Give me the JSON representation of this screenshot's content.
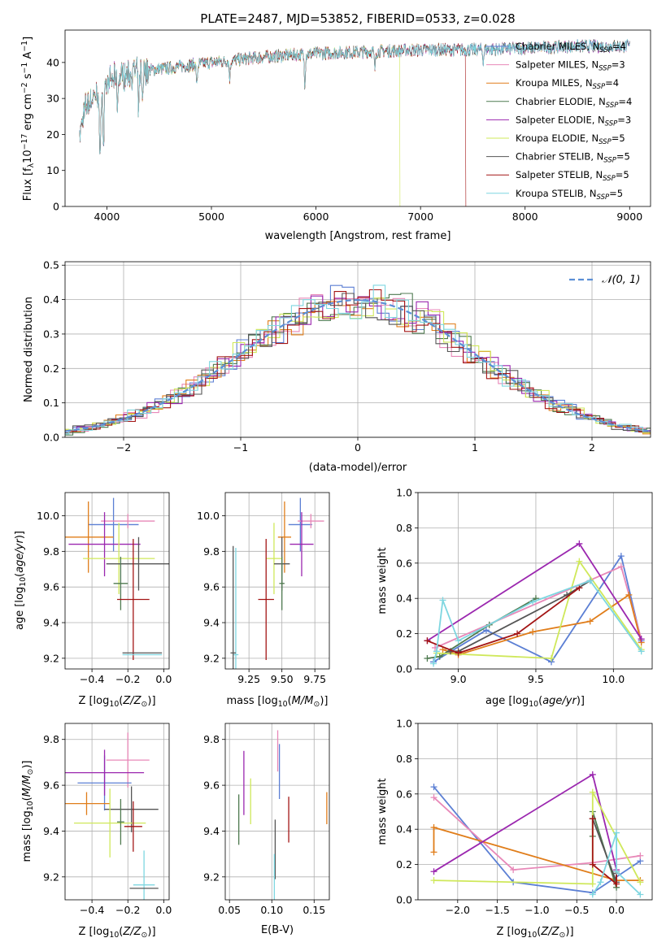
{
  "figure_title": "PLATE=2487, MJD=53852, FIBERID=0533, z=0.028",
  "colors": {
    "Chabrier MILES": "#5b7fd4",
    "Salpeter MILES": "#e888b8",
    "Kroupa MILES": "#e07d1a",
    "Chabrier ELODIE": "#4f7a50",
    "Salpeter ELODIE": "#9b27af",
    "Kroupa ELODIE": "#cfe85a",
    "Chabrier STELIB": "#555555",
    "Salpeter STELIB": "#a31515",
    "Kroupa STELIB": "#7ed6e0",
    "normal": "#5b8fd6"
  },
  "chart_data": [
    {
      "id": "spectrum",
      "type": "line",
      "xlabel": "wavelength [Angstrom, rest frame]",
      "ylabel": "Flux [fλ10⁻¹⁷ erg cm⁻² s⁻¹ A⁻¹]",
      "xlim": [
        3600,
        9200
      ],
      "ylim": [
        0,
        49
      ],
      "xticks": [
        4000,
        5000,
        6000,
        7000,
        8000,
        9000
      ],
      "yticks": [
        0,
        10,
        20,
        30,
        40
      ],
      "grid": false,
      "legend_position": "upper-right",
      "legend": [
        {
          "series": "Chabrier MILES",
          "text": "Chabrier MILES, N_SSP=4"
        },
        {
          "series": "Salpeter MILES",
          "text": "Salpeter MILES, N_SSP=3"
        },
        {
          "series": "Kroupa MILES",
          "text": "Kroupa MILES, N_SSP=4"
        },
        {
          "series": "Chabrier ELODIE",
          "text": "Chabrier ELODIE, N_SSP=4"
        },
        {
          "series": "Salpeter ELODIE",
          "text": "Salpeter ELODIE, N_SSP=3"
        },
        {
          "series": "Kroupa ELODIE",
          "text": "Kroupa ELODIE, N_SSP=5"
        },
        {
          "series": "Chabrier STELIB",
          "text": "Chabrier STELIB, N_SSP=5"
        },
        {
          "series": "Salpeter STELIB",
          "text": "Salpeter STELIB, N_SSP=5"
        },
        {
          "series": "Kroupa STELIB",
          "text": "Kroupa STELIB, N_SSP=5"
        }
      ],
      "continuum": [
        [
          3740,
          20
        ],
        [
          3800,
          28
        ],
        [
          3900,
          31
        ],
        [
          4000,
          34
        ],
        [
          4100,
          36
        ],
        [
          4300,
          37.5
        ],
        [
          4600,
          38.5
        ],
        [
          5000,
          40
        ],
        [
          5500,
          41.5
        ],
        [
          6000,
          42.5
        ],
        [
          6500,
          43
        ],
        [
          7000,
          43.5
        ],
        [
          7500,
          43.5
        ],
        [
          8000,
          44
        ],
        [
          8500,
          44.5
        ],
        [
          9000,
          44.5
        ]
      ],
      "spectrum_range": [
        3740,
        9000
      ],
      "absorption_features": [
        [
          3934,
          22
        ],
        [
          3968,
          18
        ],
        [
          4102,
          8
        ],
        [
          4304,
          12
        ],
        [
          4340,
          8
        ],
        [
          4861,
          6
        ],
        [
          5175,
          5
        ],
        [
          5893,
          8
        ],
        [
          6563,
          5
        ],
        [
          7600,
          3
        ]
      ],
      "series_cutoffs": {
        "Kroupa ELODIE": 6800,
        "Salpeter STELIB": 7430
      }
    },
    {
      "id": "residuals",
      "type": "histogram",
      "xlabel": "(data-model)/error",
      "ylabel": "Normed distribution",
      "xlim": [
        -2.5,
        2.5
      ],
      "ylim": [
        0,
        0.51
      ],
      "xticks": [
        -2,
        -1,
        0,
        1,
        2
      ],
      "yticks": [
        0.0,
        0.1,
        0.2,
        0.3,
        0.4,
        0.5
      ],
      "grid": true,
      "bin_width": 0.1,
      "overlay": {
        "type": "gaussian",
        "mean": 0,
        "sigma": 1,
        "label": "𝒩(0, 1)",
        "style": "dashed"
      },
      "legend_position": "upper-right"
    },
    {
      "id": "age_vs_Z",
      "type": "errorbar",
      "xlabel": "Z [log10(Z/Z⊙)]",
      "ylabel": "age  [log10(age/yr)]",
      "xlim": [
        -0.55,
        0.03
      ],
      "ylim": [
        9.14,
        10.13
      ],
      "xticks": [
        -0.4,
        -0.2,
        0.0
      ],
      "yticks": [
        9.2,
        9.4,
        9.6,
        9.8,
        10.0
      ],
      "points": [
        {
          "series": "Chabrier MILES",
          "x": -0.28,
          "y": 9.95,
          "xerr": 0.14,
          "yerr": 0.15
        },
        {
          "series": "Salpeter MILES",
          "x": -0.2,
          "y": 9.97,
          "xerr": 0.15,
          "yerr": 0.04
        },
        {
          "series": "Kroupa MILES",
          "x": -0.42,
          "y": 9.88,
          "xerr": 0.14,
          "yerr": 0.2
        },
        {
          "series": "Salpeter ELODIE",
          "x": -0.33,
          "y": 9.84,
          "xerr": 0.2,
          "yerr": 0.18
        },
        {
          "series": "Kroupa ELODIE",
          "x": -0.25,
          "y": 9.76,
          "xerr": 0.2,
          "yerr": 0.2
        },
        {
          "series": "Chabrier STELIB",
          "x": -0.14,
          "y": 9.73,
          "xerr": 0.18,
          "yerr": 0.15
        },
        {
          "series": "Chabrier ELODIE",
          "x": -0.24,
          "y": 9.62,
          "xerr": 0.04,
          "yerr": 0.15
        },
        {
          "series": "Salpeter STELIB",
          "x": -0.17,
          "y": 9.53,
          "xerr": 0.09,
          "yerr": 0.34
        },
        {
          "series": "Kroupa STELIB",
          "x": -0.12,
          "y": 9.22,
          "xerr": 0.11,
          "yerr": 0.0
        },
        {
          "series": "Chabrier STELIB",
          "x": -0.12,
          "y": 9.23,
          "xerr": 0.11,
          "yerr": 0.0
        }
      ]
    },
    {
      "id": "age_vs_mass",
      "type": "errorbar",
      "xlabel": "mass [log10(M/M⊙)]",
      "ylabel": "",
      "xlim": [
        9.07,
        9.86
      ],
      "ylim": [
        9.14,
        10.13
      ],
      "xticks": [
        9.25,
        9.5,
        9.75
      ],
      "yticks": [
        9.2,
        9.4,
        9.6,
        9.8,
        10.0
      ],
      "points": [
        {
          "series": "Chabrier MILES",
          "x": 9.64,
          "y": 9.95,
          "xerr": 0.09,
          "yerr": 0.15
        },
        {
          "series": "Salpeter MILES",
          "x": 9.72,
          "y": 9.97,
          "xerr": 0.1,
          "yerr": 0.04
        },
        {
          "series": "Kroupa MILES",
          "x": 9.52,
          "y": 9.88,
          "xerr": 0.05,
          "yerr": 0.2
        },
        {
          "series": "Salpeter ELODIE",
          "x": 9.65,
          "y": 9.84,
          "xerr": 0.09,
          "yerr": 0.18
        },
        {
          "series": "Kroupa ELODIE",
          "x": 9.44,
          "y": 9.76,
          "xerr": 0.06,
          "yerr": 0.2
        },
        {
          "series": "Chabrier STELIB",
          "x": 9.5,
          "y": 9.73,
          "xerr": 0.06,
          "yerr": 0.15
        },
        {
          "series": "Chabrier ELODIE",
          "x": 9.5,
          "y": 9.62,
          "xerr": 0.02,
          "yerr": 0.15
        },
        {
          "series": "Salpeter STELIB",
          "x": 9.38,
          "y": 9.53,
          "xerr": 0.06,
          "yerr": 0.34
        },
        {
          "series": "Kroupa STELIB",
          "x": 9.15,
          "y": 9.22,
          "xerr": 0.02,
          "yerr": 0.6
        },
        {
          "series": "Chabrier STELIB",
          "x": 9.13,
          "y": 9.23,
          "xerr": 0.02,
          "yerr": 0.6
        }
      ]
    },
    {
      "id": "weight_vs_age",
      "type": "line",
      "xlabel": "age  [log10(age/yr)]",
      "ylabel": "mass weight",
      "xlim": [
        8.74,
        10.25
      ],
      "ylim": [
        0.0,
        1.0
      ],
      "xticks": [
        9.0,
        9.5,
        10.0
      ],
      "yticks": [
        0.0,
        0.2,
        0.4,
        0.6,
        0.8,
        1.0
      ],
      "grid": true,
      "series": [
        {
          "name": "Chabrier MILES",
          "points": [
            [
              8.84,
              0.04
            ],
            [
              9.18,
              0.22
            ],
            [
              9.6,
              0.04
            ],
            [
              10.05,
              0.64
            ],
            [
              10.18,
              0.16
            ]
          ]
        },
        {
          "name": "Salpeter MILES",
          "points": [
            [
              8.85,
              0.12
            ],
            [
              10.05,
              0.58
            ],
            [
              10.18,
              0.17
            ]
          ]
        },
        {
          "name": "Kroupa MILES",
          "points": [
            [
              8.9,
              0.11
            ],
            [
              9.0,
              0.08
            ],
            [
              9.48,
              0.21
            ],
            [
              9.85,
              0.27
            ],
            [
              10.1,
              0.42
            ],
            [
              10.18,
              0.15
            ]
          ]
        },
        {
          "name": "Chabrier ELODIE",
          "points": [
            [
              8.8,
              0.06
            ],
            [
              8.88,
              0.07
            ],
            [
              9.2,
              0.25
            ],
            [
              9.5,
              0.4
            ]
          ]
        },
        {
          "name": "Salpeter ELODIE",
          "points": [
            [
              8.8,
              0.16
            ],
            [
              9.78,
              0.71
            ],
            [
              10.18,
              0.17
            ]
          ]
        },
        {
          "name": "Kroupa ELODIE",
          "points": [
            [
              8.86,
              0.09
            ],
            [
              9.6,
              0.06
            ],
            [
              9.78,
              0.61
            ],
            [
              10.18,
              0.11
            ]
          ]
        },
        {
          "name": "Chabrier STELIB",
          "points": [
            [
              8.95,
              0.1
            ],
            [
              9.0,
              0.1
            ],
            [
              9.7,
              0.42
            ],
            [
              9.85,
              0.5
            ]
          ]
        },
        {
          "name": "Salpeter STELIB",
          "points": [
            [
              8.8,
              0.16
            ],
            [
              9.0,
              0.09
            ],
            [
              9.38,
              0.2
            ],
            [
              9.78,
              0.46
            ]
          ]
        },
        {
          "name": "Kroupa STELIB",
          "points": [
            [
              8.84,
              0.03
            ],
            [
              8.86,
              0.1
            ],
            [
              8.9,
              0.39
            ],
            [
              9.0,
              0.16
            ],
            [
              9.48,
              0.38
            ],
            [
              9.85,
              0.5
            ],
            [
              10.18,
              0.1
            ]
          ]
        }
      ]
    },
    {
      "id": "mass_vs_Z",
      "type": "errorbar",
      "xlabel": "Z [log10(Z/Z⊙)]",
      "ylabel": "mass [log10(M/M⊙)]",
      "xlim": [
        -0.55,
        0.03
      ],
      "ylim": [
        9.1,
        9.87
      ],
      "xticks": [
        -0.4,
        -0.2,
        0.0
      ],
      "yticks": [
        9.2,
        9.4,
        9.6,
        9.8
      ],
      "points": [
        {
          "series": "Salpeter MILES",
          "x": -0.2,
          "y": 9.71,
          "xerr": 0.12,
          "yerr": 0.12
        },
        {
          "series": "Chabrier MILES",
          "x": -0.33,
          "y": 9.61,
          "xerr": 0.15,
          "yerr": 0.12
        },
        {
          "series": "Salpeter ELODIE",
          "x": -0.33,
          "y": 9.655,
          "xerr": 0.22,
          "yerr": 0.1
        },
        {
          "series": "Kroupa MILES",
          "x": -0.43,
          "y": 9.52,
          "xerr": 0.13,
          "yerr": 0.05
        },
        {
          "series": "Chabrier STELIB",
          "x": -0.18,
          "y": 9.495,
          "xerr": 0.15,
          "yerr": 0.1
        },
        {
          "series": "Kroupa ELODIE",
          "x": -0.3,
          "y": 9.435,
          "xerr": 0.2,
          "yerr": 0.15
        },
        {
          "series": "Chabrier ELODIE",
          "x": -0.24,
          "y": 9.44,
          "xerr": 0.02,
          "yerr": 0.1
        },
        {
          "series": "Salpeter STELIB",
          "x": -0.17,
          "y": 9.42,
          "xerr": 0.05,
          "yerr": 0.11
        },
        {
          "series": "Kroupa STELIB",
          "x": -0.11,
          "y": 9.165,
          "xerr": 0.06,
          "yerr": 0.15
        },
        {
          "series": "Chabrier STELIB",
          "x": -0.11,
          "y": 9.15,
          "xerr": 0.08,
          "yerr": 0.0
        }
      ]
    },
    {
      "id": "mass_vs_ebv",
      "type": "errorbar",
      "xlabel": "E(B-V)",
      "ylabel": "",
      "xlim": [
        0.045,
        0.168
      ],
      "ylim": [
        9.1,
        9.87
      ],
      "xticks": [
        0.05,
        0.1,
        0.15
      ],
      "yticks": [
        9.2,
        9.4,
        9.6,
        9.8
      ],
      "points": [
        {
          "series": "Salpeter MILES",
          "x": 0.107,
          "y": 9.75,
          "xerr": 0.0,
          "yerr": 0.09
        },
        {
          "series": "Chabrier MILES",
          "x": 0.109,
          "y": 9.66,
          "xerr": 0.0,
          "yerr": 0.12
        },
        {
          "series": "Salpeter ELODIE",
          "x": 0.067,
          "y": 9.61,
          "xerr": 0.0,
          "yerr": 0.14
        },
        {
          "series": "Kroupa ELODIE",
          "x": 0.075,
          "y": 9.53,
          "xerr": 0.0,
          "yerr": 0.1
        },
        {
          "series": "Kroupa MILES",
          "x": 0.165,
          "y": 9.5,
          "xerr": 0.0,
          "yerr": 0.07
        },
        {
          "series": "Chabrier ELODIE",
          "x": 0.061,
          "y": 9.45,
          "xerr": 0.0,
          "yerr": 0.11
        },
        {
          "series": "Salpeter STELIB",
          "x": 0.12,
          "y": 9.45,
          "xerr": 0.0,
          "yerr": 0.1
        },
        {
          "series": "Chabrier STELIB",
          "x": 0.104,
          "y": 9.32,
          "xerr": 0.0,
          "yerr": 0.13
        },
        {
          "series": "Kroupa STELIB",
          "x": 0.103,
          "y": 9.18,
          "xerr": 0.0,
          "yerr": 0.12
        }
      ]
    },
    {
      "id": "weight_vs_Z",
      "type": "line",
      "xlabel": "Z [log10(Z/Z⊙)]",
      "ylabel": "mass weight",
      "xlim": [
        -2.5,
        0.45
      ],
      "ylim": [
        0.0,
        1.0
      ],
      "xticks": [
        -2.0,
        -1.5,
        -1.0,
        -0.5,
        0.0
      ],
      "yticks": [
        0.0,
        0.2,
        0.4,
        0.6,
        0.8,
        1.0
      ],
      "grid": true,
      "series": [
        {
          "name": "Chabrier MILES",
          "points": [
            [
              -2.3,
              0.64
            ],
            [
              -1.3,
              0.1
            ],
            [
              -0.3,
              0.04
            ],
            [
              0.3,
              0.22
            ]
          ]
        },
        {
          "name": "Salpeter MILES",
          "points": [
            [
              -2.3,
              0.58
            ],
            [
              -1.3,
              0.17
            ],
            [
              -0.3,
              0.21
            ],
            [
              0.3,
              0.25
            ]
          ]
        },
        {
          "name": "Kroupa MILES",
          "points": [
            [
              -2.3,
              0.27
            ],
            [
              -2.3,
              0.41
            ],
            [
              0.0,
              0.11
            ],
            [
              0.3,
              0.11
            ]
          ]
        },
        {
          "name": "Chabrier ELODIE",
          "points": [
            [
              -0.3,
              0.36
            ],
            [
              -0.3,
              0.5
            ],
            [
              0.0,
              0.07
            ]
          ]
        },
        {
          "name": "Salpeter ELODIE",
          "points": [
            [
              -2.3,
              0.16
            ],
            [
              -0.3,
              0.71
            ],
            [
              0.0,
              0.17
            ]
          ]
        },
        {
          "name": "Kroupa ELODIE",
          "points": [
            [
              -2.3,
              0.11
            ],
            [
              -0.3,
              0.09
            ],
            [
              -0.3,
              0.61
            ],
            [
              0.3,
              0.1
            ]
          ]
        },
        {
          "name": "Chabrier STELIB",
          "points": [
            [
              -0.3,
              0.46
            ],
            [
              0.0,
              0.1
            ],
            [
              0.0,
              0.15
            ]
          ]
        },
        {
          "name": "Salpeter STELIB",
          "points": [
            [
              -0.3,
              0.46
            ],
            [
              -0.3,
              0.2
            ],
            [
              0.0,
              0.09
            ],
            [
              0.0,
              0.16
            ]
          ]
        },
        {
          "name": "Kroupa STELIB",
          "points": [
            [
              -0.3,
              0.03
            ],
            [
              -0.2,
              0.1
            ],
            [
              0.0,
              0.38
            ],
            [
              0.0,
              0.16
            ],
            [
              0.3,
              0.03
            ]
          ]
        }
      ]
    }
  ]
}
